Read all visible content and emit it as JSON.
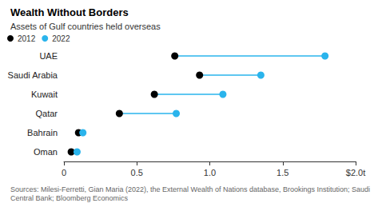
{
  "chart_data": {
    "type": "dumbbell",
    "title": "Wealth Without Borders",
    "subtitle": "Assets of Gulf countries held overseas",
    "source": "Sources: Milesi-Ferretti, Gian Maria (2022), the External Wealth of Nations database, Brookings Institution; Saudi Central Bank; Bloomberg Economics",
    "orientation": "horizontal",
    "categories": [
      "UAE",
      "Saudi Arabia",
      "Kuwait",
      "Qatar",
      "Bahrain",
      "Oman"
    ],
    "series": [
      {
        "name": "2012",
        "color": "#000000",
        "values": [
          0.76,
          0.93,
          0.62,
          0.38,
          0.1,
          0.05
        ]
      },
      {
        "name": "2022",
        "color": "#2ab4ec",
        "values": [
          1.79,
          1.35,
          1.09,
          0.77,
          0.13,
          0.09
        ]
      }
    ],
    "xlim": [
      0,
      2
    ],
    "xticks": [
      0,
      0.5,
      {
        "value": 1,
        "label": "1.0"
      },
      1.5,
      {
        "value": 2,
        "label": "$2.0t"
      }
    ],
    "grid": false,
    "legend": "top-left"
  }
}
